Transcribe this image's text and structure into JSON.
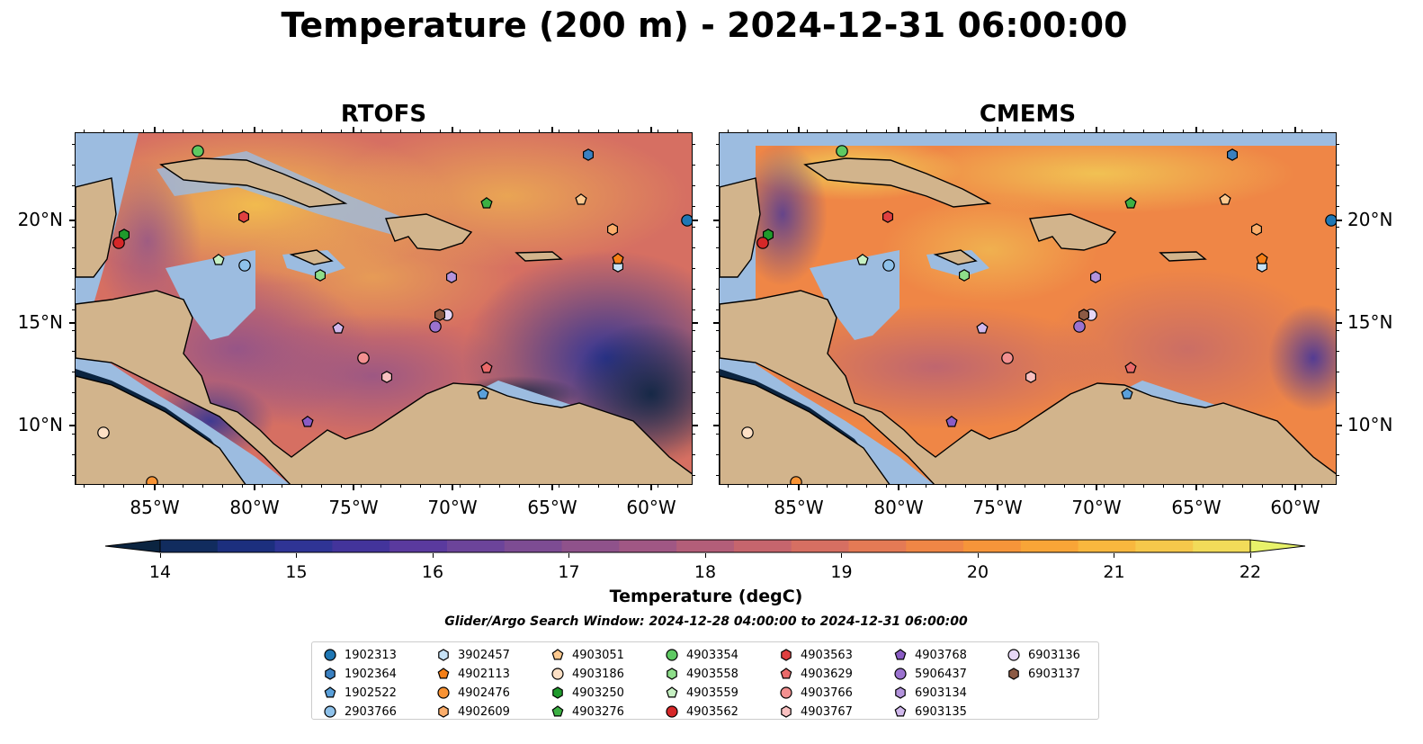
{
  "title": "Temperature (200 m) - 2024-12-31 06:00:00",
  "panels": [
    {
      "title": "RTOFS"
    },
    {
      "title": "CMEMS"
    }
  ],
  "axes": {
    "lon_ticks": [
      "85°W",
      "80°W",
      "75°W",
      "70°W",
      "65°W",
      "60°W"
    ],
    "lat_ticks": [
      "20°N",
      "15°N",
      "10°N"
    ]
  },
  "colorbar": {
    "label": "Temperature (degC)",
    "ticks": [
      "14",
      "15",
      "16",
      "17",
      "18",
      "19",
      "20",
      "21",
      "22"
    ],
    "colors": [
      "#0b2440",
      "#112c5e",
      "#1c2f7e",
      "#2f3495",
      "#43349b",
      "#5a3a9e",
      "#6c449a",
      "#7d4c93",
      "#8f528b",
      "#a05784",
      "#b35e79",
      "#c6656d",
      "#d66f62",
      "#e47a55",
      "#ef8646",
      "#f6953a",
      "#f8a537",
      "#f8b73e",
      "#f6c84b",
      "#f2db59",
      "#e8f26a"
    ]
  },
  "subtitle": "Glider/Argo Search Window: 2024-12-28 04:00:00 to 2024-12-31 06:00:00",
  "legend": {
    "items": [
      {
        "label": "1902313",
        "color": "#1f77b4",
        "shape": "circle"
      },
      {
        "label": "1902364",
        "color": "#3a80c0",
        "shape": "hexagon"
      },
      {
        "label": "1902522",
        "color": "#5aa0da",
        "shape": "pentagon"
      },
      {
        "label": "2903766",
        "color": "#8ec1ea",
        "shape": "circle"
      },
      {
        "label": "3902457",
        "color": "#c6e2f6",
        "shape": "hexagon"
      },
      {
        "label": "4902113",
        "color": "#f57f17",
        "shape": "pentagon"
      },
      {
        "label": "4902476",
        "color": "#f99334",
        "shape": "circle"
      },
      {
        "label": "4902609",
        "color": "#fbad6a",
        "shape": "hexagon"
      },
      {
        "label": "4903051",
        "color": "#fdc98f",
        "shape": "pentagon"
      },
      {
        "label": "4903186",
        "color": "#fde0c5",
        "shape": "circle"
      },
      {
        "label": "4903250",
        "color": "#1f9a2c",
        "shape": "hexagon"
      },
      {
        "label": "4903276",
        "color": "#3cb043",
        "shape": "pentagon"
      },
      {
        "label": "4903354",
        "color": "#5ec962",
        "shape": "circle"
      },
      {
        "label": "4903558",
        "color": "#8ede8a",
        "shape": "hexagon"
      },
      {
        "label": "4903559",
        "color": "#c6f0c2",
        "shape": "pentagon"
      },
      {
        "label": "4903562",
        "color": "#d62728",
        "shape": "circle"
      },
      {
        "label": "4903563",
        "color": "#e04040",
        "shape": "hexagon"
      },
      {
        "label": "4903629",
        "color": "#ea6a6a",
        "shape": "pentagon"
      },
      {
        "label": "4903766",
        "color": "#f29090",
        "shape": "circle"
      },
      {
        "label": "4903767",
        "color": "#f9c0c0",
        "shape": "hexagon"
      },
      {
        "label": "4903768",
        "color": "#8a5cc4",
        "shape": "pentagon"
      },
      {
        "label": "5906437",
        "color": "#9b72cf",
        "shape": "circle"
      },
      {
        "label": "6903134",
        "color": "#b393dc",
        "shape": "hexagon"
      },
      {
        "label": "6903135",
        "color": "#d0b8ec",
        "shape": "pentagon"
      },
      {
        "label": "6903136",
        "color": "#e6d6f6",
        "shape": "circle"
      },
      {
        "label": "6903137",
        "color": "#8c5a44",
        "shape": "hexagon"
      }
    ]
  }
}
